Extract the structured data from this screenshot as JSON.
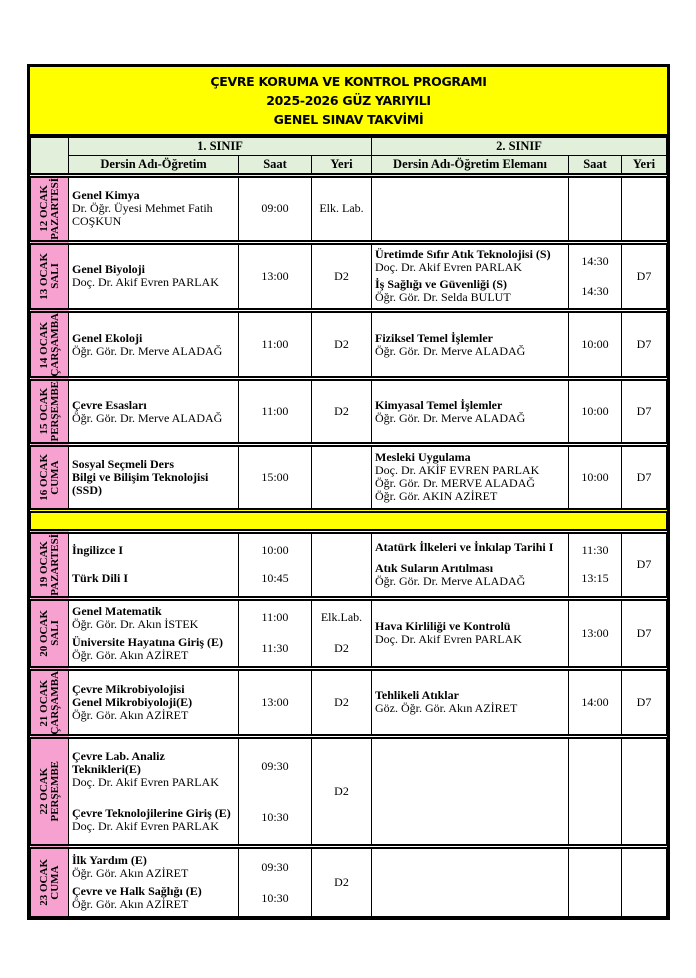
{
  "title": [
    "ÇEVRE KORUMA VE KONTROL PROGRAMI",
    "2025-2026 GÜZ YARIYILI",
    "GENEL SINAV TAKVİMİ"
  ],
  "headers": {
    "class1": "1. SINIF",
    "class2": "2. SINIF",
    "course1": "Dersin Adı-Öğretim",
    "course2": "Dersin Adı-Öğretim Elemanı",
    "time": "Saat",
    "room": "Yeri"
  },
  "colors": {
    "title_bg": "#ffff00",
    "header_bg": "#e2efda",
    "date_bg": "#f7a1d0"
  },
  "days": [
    {
      "date": [
        "12 OCAK",
        "PAZARTESİ"
      ],
      "h": 66,
      "c1": [
        [
          {
            "t": "Genel Kimya",
            "b": true
          },
          {
            "t": "Dr. Öğr. Üyesi Mehmet Fatih COŞKUN"
          }
        ]
      ],
      "t1": [
        "09:00"
      ],
      "r1": [
        "Elk. Lab."
      ],
      "c2": [],
      "t2": [],
      "r2": []
    },
    {
      "date": [
        "13 OCAK",
        "SALI"
      ],
      "h": 68,
      "c1": [
        [
          {
            "t": "Genel Biyoloji",
            "b": true
          },
          {
            "t": "Doç. Dr. Akif Evren PARLAK"
          }
        ]
      ],
      "t1": [
        "13:00"
      ],
      "r1": [
        "D2"
      ],
      "c2": [
        [
          {
            "t": "Üretimde Sıfır Atık Teknolojisi (S)",
            "b": true
          },
          {
            "t": "Doç. Dr. Akif Evren PARLAK"
          }
        ],
        [
          {
            "t": "İş Sağlığı ve Güvenliği (S)",
            "b": true
          },
          {
            "t": "Öğr. Gör. Dr. Selda BULUT"
          }
        ]
      ],
      "t2": [
        "14:30",
        "14:30"
      ],
      "r2": [
        "D7"
      ]
    },
    {
      "date": [
        "14 OCAK",
        "ÇARŞAMBA"
      ],
      "h": 65,
      "c1": [
        [
          {
            "t": "Genel Ekoloji",
            "b": true
          },
          {
            "t": "Öğr. Gör. Dr. Merve ALADAĞ"
          }
        ]
      ],
      "t1": [
        "11:00"
      ],
      "r1": [
        "D2"
      ],
      "c2": [
        [
          {
            "t": "Fiziksel Temel İşlemler",
            "b": true
          },
          {
            "t": "Öğr. Gör. Dr. Merve ALADAĞ"
          }
        ]
      ],
      "t2": [
        "10:00"
      ],
      "r2": [
        "D7"
      ]
    },
    {
      "date": [
        "15 OCAK",
        "PERŞEMBE"
      ],
      "h": 65,
      "c1": [
        [
          {
            "t": "Çevre Esasları",
            "b": true
          },
          {
            "t": "Öğr. Gör. Dr. Merve ALADAĞ"
          }
        ]
      ],
      "t1": [
        "11:00"
      ],
      "r1": [
        "D2"
      ],
      "c2": [
        [
          {
            "t": "Kimyasal Temel İşlemler",
            "b": true
          },
          {
            "t": "Öğr. Gör. Dr. Merve ALADAĞ"
          }
        ]
      ],
      "t2": [
        "10:00"
      ],
      "r2": [
        "D7"
      ]
    },
    {
      "date": [
        "16 OCAK",
        "CUMA"
      ],
      "h": 66,
      "c1": [
        [
          {
            "t": "Sosyal Seçmeli Ders",
            "b": true
          },
          {
            "t": "Bilgi ve Bilişim Teknolojisi",
            "b": true
          },
          {
            "t": "(SSD)",
            "b": true
          }
        ]
      ],
      "t1": [
        "15:00"
      ],
      "r1": [],
      "c2": [
        [
          {
            "t": "Mesleki Uygulama",
            "b": true
          },
          {
            "t": "Doç. Dr. AKİF EVREN PARLAK"
          },
          {
            "t": "Öğr. Gör. Dr. MERVE ALADAĞ"
          },
          {
            "t": "Öğr. Gör. AKIN AZİRET"
          }
        ]
      ],
      "t2": [
        "10:00"
      ],
      "r2": [
        "D7"
      ]
    },
    {
      "separator": true
    },
    {
      "date": [
        "19 OCAK",
        "PAZARTESİ"
      ],
      "h": 63,
      "c1": [
        [
          {
            "t": "İngilizce I",
            "b": true
          }
        ],
        [
          {
            "t": "Türk Dili I",
            "b": true
          }
        ]
      ],
      "t1": [
        "10:00",
        "10:45"
      ],
      "r1": [],
      "c2": [
        [
          {
            "t": "Atatürk İlkeleri ve İnkılap Tarihi I",
            "b": true
          }
        ],
        [
          {
            "t": "Atık Suların Arıtılması",
            "b": true
          },
          {
            "t": "Öğr. Gör. Dr. Merve ALADAĞ"
          }
        ]
      ],
      "t2": [
        "11:30",
        "13:15"
      ],
      "r2": [
        "D7"
      ]
    },
    {
      "date": [
        "20 OCAK",
        "SALI"
      ],
      "h": 70,
      "c1": [
        [
          {
            "t": "Genel Matematik",
            "b": true
          },
          {
            "t": "Öğr. Gör. Dr. Akın İSTEK"
          }
        ],
        [
          {
            "t": "Üniversite Hayatına Giriş (E)",
            "b": true
          },
          {
            "t": "Öğr. Gör. Akın AZİRET"
          }
        ]
      ],
      "t1": [
        "11:00",
        "11:30"
      ],
      "r1": [
        "Elk.Lab.",
        "D2"
      ],
      "c2": [
        [
          {
            "t": "Hava Kirliliği ve Kontrolü",
            "b": true
          },
          {
            "t": "Doç. Dr. Akif Evren PARLAK"
          }
        ]
      ],
      "t2": [
        "13:00"
      ],
      "r2": [
        "D7"
      ]
    },
    {
      "date": [
        "21 OCAK",
        "ÇARŞAMBA"
      ],
      "h": 66,
      "c1": [
        [
          {
            "t": "Çevre Mikrobiyolojisi",
            "b": true
          },
          {
            "t": "Genel Mikrobiyoloji(E)",
            "b": true
          },
          {
            "t": "Öğr. Gör. Akın AZİRET"
          }
        ]
      ],
      "t1": [
        "13:00"
      ],
      "r1": [
        "D2"
      ],
      "c2": [
        [
          {
            "t": "Tehlikeli Atıklar",
            "b": true
          },
          {
            "t": "Göz. Öğr. Gör. Akın AZİRET"
          }
        ]
      ],
      "t2": [
        "14:00"
      ],
      "r2": [
        "D7"
      ]
    },
    {
      "date": [
        "22 OCAK",
        "PERŞEMBE"
      ],
      "h": 110,
      "c1": [
        [
          {
            "t": "Çevre Lab. Analiz Teknikleri(E)",
            "b": true
          },
          {
            "t": "Doç. Dr. Akif Evren PARLAK"
          }
        ],
        [
          {
            "t": "Çevre Teknolojilerine Giriş (E)",
            "b": true
          },
          {
            "t": "Doç. Dr. Akif Evren PARLAK"
          }
        ]
      ],
      "t1": [
        "09:30",
        "10:30"
      ],
      "r1": [
        "D2"
      ],
      "c2": [],
      "t2": [],
      "r2": []
    },
    {
      "date": [
        "23 OCAK",
        "CUMA"
      ],
      "h": 70,
      "c1": [
        [
          {
            "t": "İlk Yardım (E)",
            "b": true
          },
          {
            "t": "Öğr. Gör. Akın AZİRET"
          }
        ],
        [
          {
            "t": "Çevre ve Halk Sağlığı (E)",
            "b": true
          },
          {
            "t": "Öğr. Gör. Akın AZİRET"
          }
        ]
      ],
      "t1": [
        "09:30",
        "10:30"
      ],
      "r1": [
        "D2"
      ],
      "c2": [],
      "t2": [],
      "r2": []
    }
  ]
}
